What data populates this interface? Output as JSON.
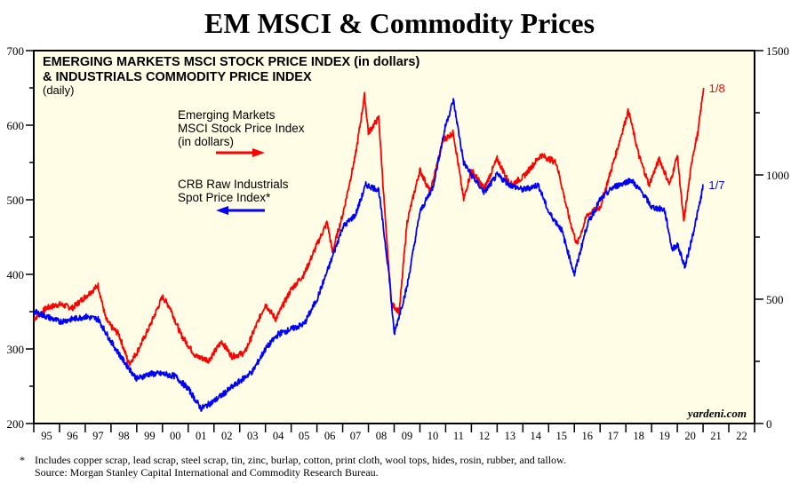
{
  "title": "EM MSCI & Commodity Prices",
  "chart_data": {
    "type": "line",
    "title": "EMERGING MARKETS MSCI STOCK PRICE INDEX (in dollars)",
    "title2": "& INDUSTRIALS COMMODITY PRICE INDEX",
    "subtitle": "(daily)",
    "xlim": [
      1995,
      2023
    ],
    "x_tick_labels": [
      "95",
      "96",
      "97",
      "98",
      "99",
      "00",
      "01",
      "02",
      "03",
      "04",
      "05",
      "06",
      "07",
      "08",
      "09",
      "10",
      "11",
      "12",
      "13",
      "14",
      "15",
      "16",
      "17",
      "18",
      "19",
      "20",
      "21",
      "22"
    ],
    "y_left": {
      "lim": [
        200,
        700
      ],
      "ticks": [
        200,
        300,
        400,
        500,
        600,
        700
      ]
    },
    "y_right": {
      "lim": [
        0,
        1500
      ],
      "ticks": [
        0,
        500,
        1000,
        1500
      ]
    },
    "grid": false,
    "background": "#fffde6",
    "series": [
      {
        "name": "Emerging Markets MSCI Stock Price Index (in dollars)",
        "legend_lines": [
          "Emerging Markets",
          "MSCI Stock Price Index",
          "(in dollars)"
        ],
        "axis": "left",
        "color": "#ff0000",
        "end_label": "1/8",
        "x": [
          1995,
          1995.5,
          1996,
          1996.5,
          1997,
          1997.5,
          1997.8,
          1998,
          1998.3,
          1998.7,
          1999,
          1999.5,
          2000,
          2000.3,
          2000.7,
          2001,
          2001.3,
          2001.8,
          2002.3,
          2002.7,
          2003.2,
          2003.5,
          2004,
          2004.4,
          2005,
          2005.5,
          2006,
          2006.4,
          2006.6,
          2007,
          2007.5,
          2007.85,
          2008,
          2008.4,
          2008.7,
          2008.9,
          2009.2,
          2009.5,
          2010,
          2010.4,
          2010.9,
          2011.3,
          2011.7,
          2012,
          2012.5,
          2013,
          2013.5,
          2014,
          2014.7,
          2015.3,
          2015.8,
          2016.1,
          2016.5,
          2017,
          2017.6,
          2018.1,
          2018.5,
          2018.9,
          2019.3,
          2019.7,
          2020,
          2020.25,
          2020.6,
          2020.8,
          2021.02
        ],
        "y": [
          340,
          355,
          360,
          355,
          370,
          385,
          340,
          330,
          320,
          280,
          295,
          330,
          370,
          355,
          320,
          305,
          290,
          285,
          310,
          290,
          295,
          320,
          360,
          340,
          380,
          400,
          440,
          470,
          430,
          480,
          560,
          640,
          590,
          610,
          450,
          360,
          350,
          470,
          540,
          510,
          580,
          590,
          500,
          540,
          515,
          555,
          520,
          530,
          560,
          550,
          475,
          440,
          480,
          490,
          560,
          620,
          560,
          520,
          555,
          520,
          560,
          470,
          560,
          590,
          650
        ]
      },
      {
        "name": "CRB Raw Industrials Spot Price Index*",
        "legend_lines": [
          "CRB Raw Industrials",
          "Spot Price Index*"
        ],
        "axis": "right",
        "color": "#0000ff",
        "end_label": "1/7",
        "x": [
          1995,
          1995.5,
          1996,
          1996.5,
          1997,
          1997.5,
          1998,
          1998.5,
          1999,
          1999.5,
          2000,
          2000.5,
          2001,
          2001.5,
          2002,
          2002.5,
          2003,
          2003.5,
          2004,
          2004.5,
          2005,
          2005.5,
          2006,
          2006.5,
          2007,
          2007.5,
          2007.9,
          2008.4,
          2008.8,
          2009,
          2009.5,
          2010,
          2010.5,
          2011,
          2011.3,
          2011.7,
          2012,
          2012.5,
          2013,
          2013.5,
          2014,
          2014.6,
          2015,
          2015.5,
          2016,
          2016.5,
          2017,
          2017.5,
          2018.2,
          2018.7,
          2019,
          2019.5,
          2019.8,
          2020,
          2020.3,
          2020.6,
          2020.9,
          2021.01
        ],
        "y": [
          450,
          430,
          410,
          420,
          430,
          420,
          330,
          250,
          180,
          200,
          200,
          190,
          140,
          60,
          90,
          130,
          170,
          210,
          300,
          360,
          380,
          400,
          500,
          640,
          790,
          840,
          960,
          940,
          600,
          360,
          550,
          850,
          950,
          1200,
          1300,
          1050,
          1000,
          930,
          1000,
          960,
          940,
          960,
          850,
          780,
          600,
          800,
          900,
          950,
          980,
          920,
          870,
          860,
          700,
          720,
          630,
          760,
          900,
          960
        ]
      }
    ],
    "watermark": "yardeni.com"
  },
  "footnote": {
    "marker": "*",
    "line1": "Includes copper scrap, lead scrap, steel scrap, tin, zinc, burlap, cotton, print cloth, wool tops, hides, rosin, rubber, and tallow.",
    "line2": "Source: Morgan Stanley Capital International and Commodity Research Bureau."
  }
}
